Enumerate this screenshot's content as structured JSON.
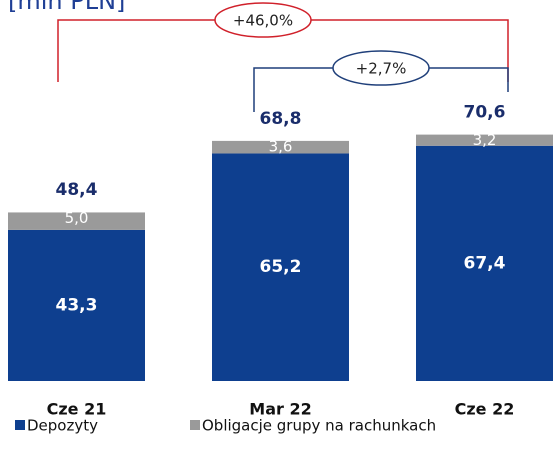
{
  "chart_data": {
    "type": "stacked_bar",
    "title": "[mln PLN]",
    "categories": [
      "Cze 21",
      "Mar 22",
      "Cze 22"
    ],
    "series": [
      {
        "name": "Depozyty",
        "color": "#0e3f8f",
        "values": [
          43.3,
          65.2,
          67.4
        ],
        "value_labels": [
          "43,3",
          "65,2",
          "67,4"
        ]
      },
      {
        "name": "Obligacje grupy na rachunkach",
        "color": "#9a9a9a",
        "values": [
          5.0,
          3.6,
          3.2
        ],
        "value_labels": [
          "5,0",
          "3,6",
          "3,2"
        ]
      }
    ],
    "totals": [
      48.4,
      68.8,
      70.6
    ],
    "total_labels": [
      "48,4",
      "68,8",
      "70,6"
    ],
    "annotations": [
      "+46,0%",
      "+2,7%"
    ],
    "legend": "bottom"
  }
}
